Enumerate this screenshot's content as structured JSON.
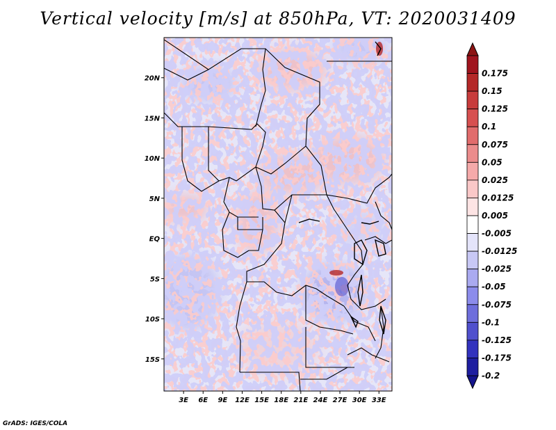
{
  "title": "Vertical velocity [m/s] at 850hPa, VT: 2020031409",
  "credit": "GrADS: IGES/COLA",
  "map": {
    "lon_range": [
      0,
      35
    ],
    "lat_range": [
      -19,
      25
    ],
    "lat_ticks": [
      {
        "value": 20,
        "label": "20N"
      },
      {
        "value": 15,
        "label": "15N"
      },
      {
        "value": 10,
        "label": "10N"
      },
      {
        "value": 5,
        "label": "5N"
      },
      {
        "value": 0,
        "label": "EQ"
      },
      {
        "value": -5,
        "label": "5S"
      },
      {
        "value": -10,
        "label": "10S"
      },
      {
        "value": -15,
        "label": "15S"
      }
    ],
    "lon_ticks": [
      {
        "value": 3,
        "label": "3E"
      },
      {
        "value": 6,
        "label": "6E"
      },
      {
        "value": 9,
        "label": "9E"
      },
      {
        "value": 12,
        "label": "12E"
      },
      {
        "value": 15,
        "label": "15E"
      },
      {
        "value": 18,
        "label": "18E"
      },
      {
        "value": 21,
        "label": "21E"
      },
      {
        "value": 24,
        "label": "24E"
      },
      {
        "value": 27,
        "label": "27E"
      },
      {
        "value": 30,
        "label": "30E"
      },
      {
        "value": 33,
        "label": "33E"
      }
    ]
  },
  "colorbar": {
    "levels": [
      {
        "label": "0.175",
        "color": "#a0141e"
      },
      {
        "label": "0.15",
        "color": "#b42828"
      },
      {
        "label": "0.125",
        "color": "#c83c3c"
      },
      {
        "label": "0.1",
        "color": "#d75050"
      },
      {
        "label": "0.075",
        "color": "#e16c6c"
      },
      {
        "label": "0.05",
        "color": "#eb8c8c"
      },
      {
        "label": "0.025",
        "color": "#f5aaaa"
      },
      {
        "label": "0.0125",
        "color": "#fac8c8"
      },
      {
        "label": "0.005",
        "color": "#fde4e4"
      },
      {
        "label": "-0.005",
        "color": "#ffffff"
      },
      {
        "label": "-0.0125",
        "color": "#e4e4fa"
      },
      {
        "label": "-0.025",
        "color": "#c8c8f5"
      },
      {
        "label": "-0.05",
        "color": "#aaaaf0"
      },
      {
        "label": "-0.075",
        "color": "#8c8ceb"
      },
      {
        "label": "-0.1",
        "color": "#6e6edc"
      },
      {
        "label": "-0.125",
        "color": "#5050cd"
      },
      {
        "label": "-0.175",
        "color": "#3232be"
      },
      {
        "label": "-0.2",
        "color": "#1e1ea0"
      }
    ],
    "top_arrow_color": "#8c1414",
    "bottom_arrow_color": "#14148c"
  }
}
